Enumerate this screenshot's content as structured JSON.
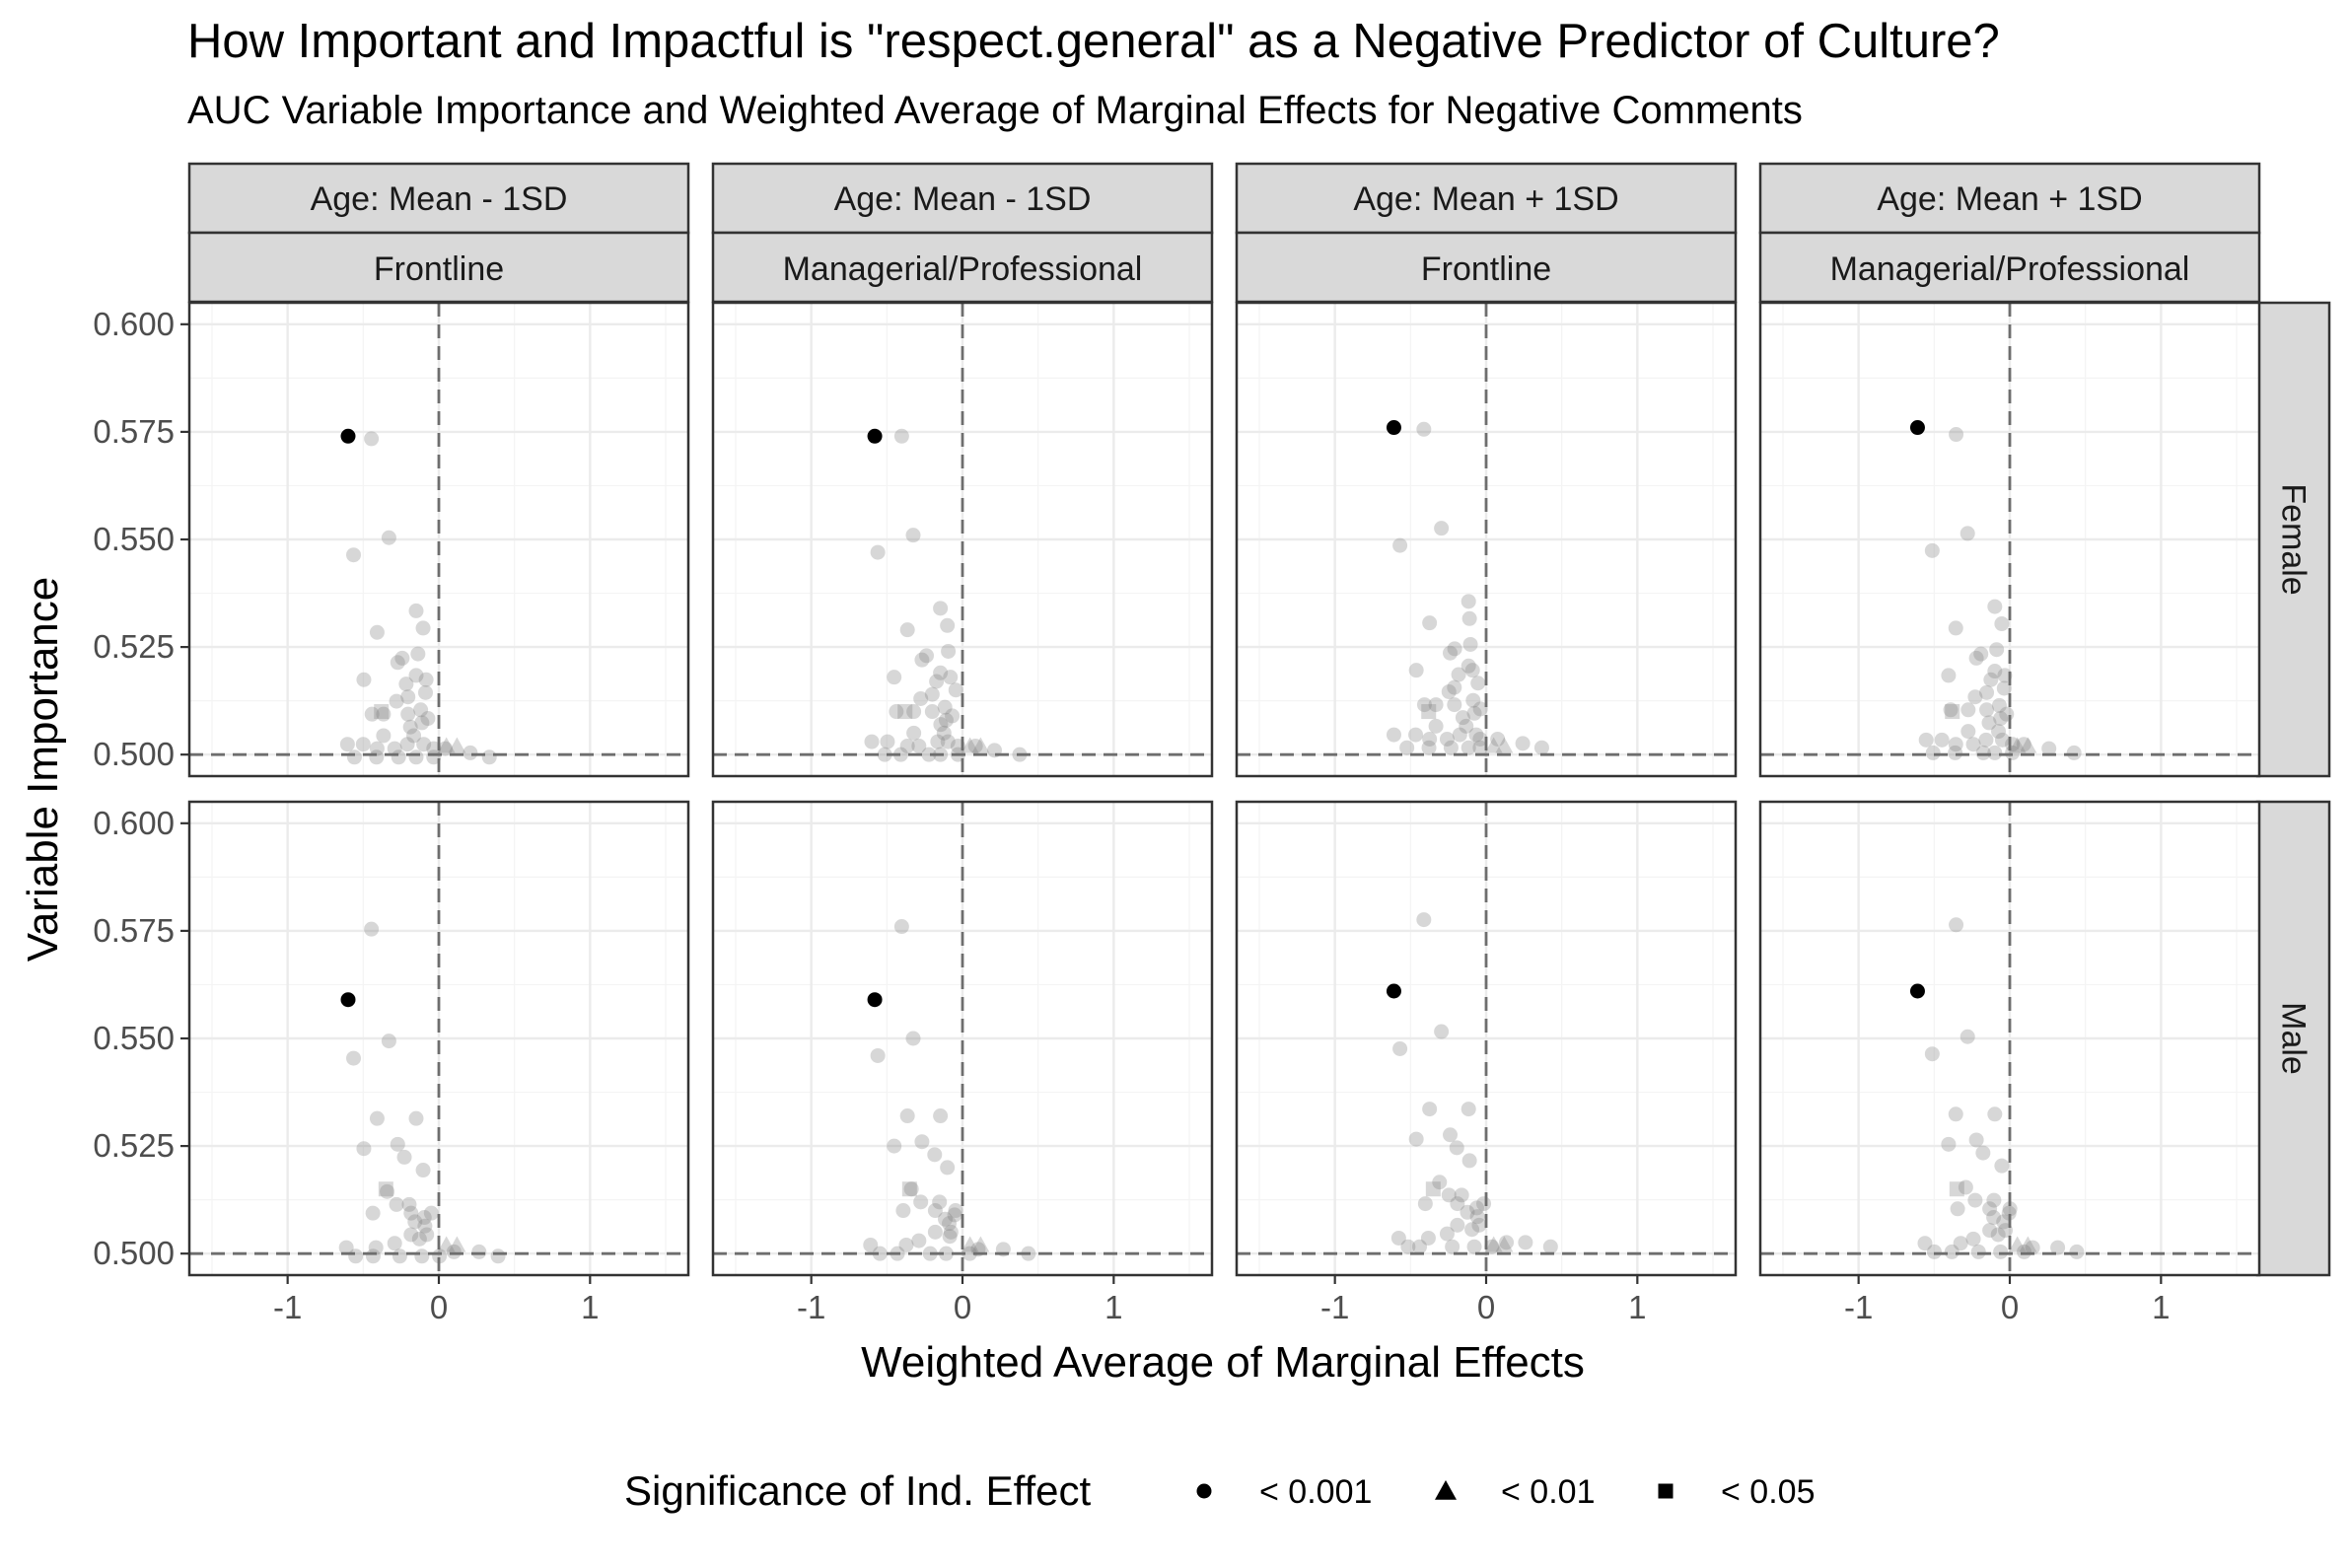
{
  "title": "How Important and Impactful is \"respect.general\" as a Negative Predictor of Culture?",
  "subtitle": "AUC Variable Importance and Weighted Average of Marginal Effects for Negative Comments",
  "legend": {
    "title": "Significance of Ind. Effect",
    "items": [
      {
        "label": "< 0.001",
        "shape": "circle"
      },
      {
        "label": "< 0.01",
        "shape": "triangle"
      },
      {
        "label": "< 0.05",
        "shape": "square"
      }
    ]
  },
  "chart_data": {
    "type": "scatter",
    "xlabel": "Weighted Average of Marginal Effects",
    "ylabel": "Variable Importance",
    "xlim": [
      -1.65,
      1.65
    ],
    "ylim": [
      0.495,
      0.605
    ],
    "x_ticks": [
      -1,
      0,
      1
    ],
    "x_tick_labels": [
      "-1",
      "0",
      "1"
    ],
    "y_ticks": [
      0.5,
      0.525,
      0.55,
      0.575,
      0.6
    ],
    "y_tick_labels": [
      "0.500",
      "0.525",
      "0.550",
      "0.575",
      "0.600"
    ],
    "reference_lines": {
      "x": 0,
      "y": 0.5
    },
    "grid": true,
    "columns": [
      {
        "strip_top": "Age: Mean - 1SD",
        "strip_bottom": "Frontline"
      },
      {
        "strip_top": "Age: Mean - 1SD",
        "strip_bottom": "Managerial/Professional"
      },
      {
        "strip_top": "Age: Mean + 1SD",
        "strip_bottom": "Frontline"
      },
      {
        "strip_top": "Age: Mean + 1SD",
        "strip_bottom": "Managerial/Professional"
      }
    ],
    "rows": [
      "Female",
      "Male"
    ],
    "highlight": {
      "variable": "respect.general",
      "points": [
        [
          [
            -0.6,
            0.574
          ],
          [
            -0.58,
            0.574
          ],
          [
            -0.61,
            0.576
          ],
          [
            -0.61,
            0.576
          ]
        ],
        [
          [
            -0.6,
            0.559
          ],
          [
            -0.58,
            0.559
          ],
          [
            -0.61,
            0.561
          ],
          [
            -0.61,
            0.561
          ]
        ]
      ]
    },
    "background": {
      "Female": {
        "circles": [
          [
            -0.43,
            0.574
          ],
          [
            -0.33,
            0.551
          ],
          [
            -0.58,
            0.547
          ],
          [
            -0.4,
            0.529
          ],
          [
            -0.28,
            0.522
          ],
          [
            -0.48,
            0.518
          ],
          [
            -0.15,
            0.534
          ],
          [
            -0.12,
            0.53
          ],
          [
            -0.13,
            0.524
          ],
          [
            -0.25,
            0.523
          ],
          [
            -0.2,
            0.517
          ],
          [
            -0.15,
            0.519
          ],
          [
            -0.1,
            0.518
          ],
          [
            -0.08,
            0.515
          ],
          [
            -0.45,
            0.51
          ],
          [
            -0.35,
            0.51
          ],
          [
            -0.28,
            0.513
          ],
          [
            -0.22,
            0.51
          ],
          [
            -0.18,
            0.507
          ],
          [
            -0.12,
            0.508
          ],
          [
            -0.15,
            0.505
          ],
          [
            -0.1,
            0.503
          ],
          [
            -0.05,
            0.502
          ],
          [
            -0.2,
            0.503
          ],
          [
            -0.3,
            0.502
          ],
          [
            -0.35,
            0.505
          ],
          [
            -0.5,
            0.503
          ],
          [
            -0.62,
            0.503
          ],
          [
            -0.55,
            0.5
          ],
          [
            -0.42,
            0.5
          ],
          [
            -0.25,
            0.5
          ],
          [
            -0.15,
            0.5
          ],
          [
            -0.05,
            0.5
          ],
          [
            0.05,
            0.502
          ],
          [
            0.2,
            0.501
          ],
          [
            0.35,
            0.5
          ],
          [
            -0.12,
            0.511
          ],
          [
            -0.22,
            0.514
          ],
          [
            -0.4,
            0.502
          ],
          [
            -0.08,
            0.509
          ]
        ],
        "triangles": [
          [
            0.05,
            0.502
          ],
          [
            0.12,
            0.502
          ]
        ],
        "squares": [
          [
            -0.38,
            0.51
          ]
        ]
      },
      "Male": {
        "circles": [
          [
            -0.43,
            0.576
          ],
          [
            -0.33,
            0.55
          ],
          [
            -0.58,
            0.546
          ],
          [
            -0.4,
            0.532
          ],
          [
            -0.28,
            0.526
          ],
          [
            -0.48,
            0.525
          ],
          [
            -0.15,
            0.532
          ],
          [
            -0.12,
            0.52
          ],
          [
            -0.22,
            0.523
          ],
          [
            -0.35,
            0.515
          ],
          [
            -0.42,
            0.51
          ],
          [
            -0.28,
            0.512
          ],
          [
            -0.2,
            0.51
          ],
          [
            -0.15,
            0.508
          ],
          [
            -0.1,
            0.507
          ],
          [
            -0.08,
            0.509
          ],
          [
            -0.05,
            0.51
          ],
          [
            -0.2,
            0.505
          ],
          [
            -0.12,
            0.504
          ],
          [
            -0.3,
            0.503
          ],
          [
            -0.4,
            0.502
          ],
          [
            -0.55,
            0.5
          ],
          [
            -0.45,
            0.5
          ],
          [
            -0.25,
            0.5
          ],
          [
            -0.12,
            0.5
          ],
          [
            0.02,
            0.5
          ],
          [
            0.1,
            0.501
          ],
          [
            0.25,
            0.501
          ],
          [
            0.4,
            0.5
          ],
          [
            -0.62,
            0.502
          ],
          [
            -0.18,
            0.512
          ],
          [
            -0.08,
            0.505
          ]
        ],
        "triangles": [
          [
            0.05,
            0.502
          ],
          [
            0.12,
            0.502
          ]
        ],
        "squares": [
          [
            -0.35,
            0.515
          ]
        ]
      }
    }
  }
}
